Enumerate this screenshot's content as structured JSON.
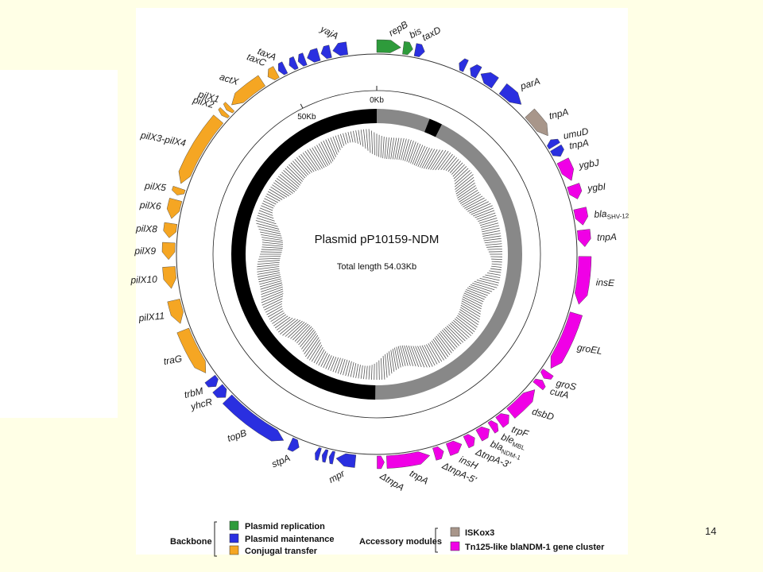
{
  "page_number": "14",
  "plasmid": {
    "title": "Plasmid pP10159-NDM",
    "total_length_label": "Total length 54.03Kb",
    "total_length_kb": 54.03
  },
  "scale_ticks": [
    {
      "label": "0Kb",
      "kb": 0
    },
    {
      "label": "50Kb",
      "kb": 50
    }
  ],
  "colors": {
    "replication": "#2E9B3B",
    "maintenance": "#2A2FE0",
    "conjugal": "#F5A623",
    "iskox3": "#A8968A",
    "tn125": "#F000E6",
    "backbone_ring": "#000000",
    "accessory_ring": "#888888"
  },
  "ring_segments": [
    {
      "start_kb": 0,
      "end_kb": 3.2,
      "type": "accessory"
    },
    {
      "start_kb": 3.2,
      "end_kb": 4.0,
      "type": "backbone"
    },
    {
      "start_kb": 4.0,
      "end_kb": 27.1,
      "type": "accessory"
    },
    {
      "start_kb": 27.1,
      "end_kb": 54.03,
      "type": "backbone"
    }
  ],
  "genes": [
    {
      "name": "repB",
      "start_kb": 0.0,
      "end_kb": 1.0,
      "strand": "+",
      "category": "replication"
    },
    {
      "name": "bis",
      "start_kb": 1.1,
      "end_kb": 1.5,
      "strand": "+",
      "category": "replication"
    },
    {
      "name": "taxD",
      "start_kb": 1.6,
      "end_kb": 2.0,
      "strand": "+",
      "category": "maintenance"
    },
    {
      "name": "",
      "start_kb": 3.5,
      "end_kb": 3.8,
      "strand": "-",
      "category": "maintenance"
    },
    {
      "name": "",
      "start_kb": 4.0,
      "end_kb": 4.4,
      "strand": "-",
      "category": "maintenance"
    },
    {
      "name": "",
      "start_kb": 4.5,
      "end_kb": 5.2,
      "strand": "-",
      "category": "maintenance"
    },
    {
      "name": "parA",
      "start_kb": 5.6,
      "end_kb": 6.6,
      "strand": "+",
      "category": "maintenance"
    },
    {
      "name": "tnpA",
      "start_kb": 7.1,
      "end_kb": 8.3,
      "strand": "+",
      "category": "iskox3"
    },
    {
      "name": "umuD",
      "start_kb": 8.5,
      "end_kb": 8.8,
      "strand": "-",
      "category": "maintenance"
    },
    {
      "name": "tnpA",
      "start_kb": 8.9,
      "end_kb": 9.3,
      "strand": "+",
      "category": "maintenance"
    },
    {
      "name": "ygbJ",
      "start_kb": 9.5,
      "end_kb": 10.4,
      "strand": "+",
      "category": "tn125"
    },
    {
      "name": "ygbI",
      "start_kb": 10.6,
      "end_kb": 11.2,
      "strand": "+",
      "category": "tn125"
    },
    {
      "name": "blaSHV-12",
      "start_kb": 11.6,
      "end_kb": 12.3,
      "strand": "+",
      "category": "tn125"
    },
    {
      "name": "tnpA",
      "start_kb": 12.5,
      "end_kb": 13.2,
      "strand": "+",
      "category": "tn125"
    },
    {
      "name": "insE",
      "start_kb": 13.6,
      "end_kb": 15.6,
      "strand": "+",
      "category": "tn125"
    },
    {
      "name": "groEL",
      "start_kb": 16.0,
      "end_kb": 18.5,
      "strand": "+",
      "category": "tn125"
    },
    {
      "name": "groS",
      "start_kb": 18.7,
      "end_kb": 19.0,
      "strand": "+",
      "category": "tn125"
    },
    {
      "name": "cutA",
      "start_kb": 19.1,
      "end_kb": 19.4,
      "strand": "-",
      "category": "tn125"
    },
    {
      "name": "dsbD",
      "start_kb": 19.6,
      "end_kb": 21.0,
      "strand": "-",
      "category": "tn125"
    },
    {
      "name": "trpF",
      "start_kb": 21.1,
      "end_kb": 21.6,
      "strand": "-",
      "category": "tn125"
    },
    {
      "name": "bleMBL",
      "start_kb": 21.7,
      "end_kb": 22.0,
      "strand": "-",
      "category": "tn125"
    },
    {
      "name": "blaNDM-1",
      "start_kb": 22.1,
      "end_kb": 22.6,
      "strand": "-",
      "category": "tn125"
    },
    {
      "name": "ΔtnpA-3'",
      "start_kb": 22.8,
      "end_kb": 23.2,
      "strand": "-",
      "category": "tn125"
    },
    {
      "name": "insH",
      "start_kb": 23.4,
      "end_kb": 24.0,
      "strand": "-",
      "category": "tn125"
    },
    {
      "name": "ΔtnpA-5'",
      "start_kb": 24.2,
      "end_kb": 24.6,
      "strand": "-",
      "category": "tn125"
    },
    {
      "name": "tnpA",
      "start_kb": 24.8,
      "end_kb": 26.6,
      "strand": "-",
      "category": "tn125"
    },
    {
      "name": "ΔtnpA",
      "start_kb": 26.7,
      "end_kb": 27.0,
      "strand": "-",
      "category": "tn125"
    },
    {
      "name": "mpr",
      "start_kb": 27.9,
      "end_kb": 28.7,
      "strand": "+",
      "category": "maintenance"
    },
    {
      "name": "",
      "start_kb": 28.8,
      "end_kb": 29.0,
      "strand": "+",
      "category": "maintenance"
    },
    {
      "name": "",
      "start_kb": 29.1,
      "end_kb": 29.3,
      "strand": "+",
      "category": "maintenance"
    },
    {
      "name": "",
      "start_kb": 29.4,
      "end_kb": 29.6,
      "strand": "+",
      "category": "maintenance"
    },
    {
      "name": "stpA",
      "start_kb": 30.3,
      "end_kb": 30.7,
      "strand": "-",
      "category": "maintenance"
    },
    {
      "name": "topB",
      "start_kb": 31.0,
      "end_kb": 33.9,
      "strand": "-",
      "category": "maintenance"
    },
    {
      "name": "yhcR",
      "start_kb": 34.0,
      "end_kb": 34.5,
      "strand": "-",
      "category": "maintenance"
    },
    {
      "name": "trbM",
      "start_kb": 34.6,
      "end_kb": 35.0,
      "strand": "-",
      "category": "maintenance"
    },
    {
      "name": "traG",
      "start_kb": 35.3,
      "end_kb": 37.3,
      "strand": "-",
      "category": "conjugal"
    },
    {
      "name": "pilX11",
      "start_kb": 37.6,
      "end_kb": 38.6,
      "strand": "-",
      "category": "conjugal"
    },
    {
      "name": "pilX10",
      "start_kb": 39.1,
      "end_kb": 40.0,
      "strand": "-",
      "category": "conjugal"
    },
    {
      "name": "pilX9",
      "start_kb": 40.3,
      "end_kb": 41.0,
      "strand": "-",
      "category": "conjugal"
    },
    {
      "name": "pilX8",
      "start_kb": 41.2,
      "end_kb": 41.8,
      "strand": "-",
      "category": "conjugal"
    },
    {
      "name": "pilX6",
      "start_kb": 42.0,
      "end_kb": 42.8,
      "strand": "-",
      "category": "conjugal"
    },
    {
      "name": "pilX5",
      "start_kb": 43.0,
      "end_kb": 43.3,
      "strand": "-",
      "category": "conjugal"
    },
    {
      "name": "pilX3-pilX4",
      "start_kb": 43.5,
      "end_kb": 46.6,
      "strand": "-",
      "category": "conjugal"
    },
    {
      "name": "pilX2",
      "start_kb": 46.8,
      "end_kb": 47.0,
      "strand": "-",
      "category": "conjugal"
    },
    {
      "name": "pilX1",
      "start_kb": 47.1,
      "end_kb": 47.3,
      "strand": "-",
      "category": "conjugal"
    },
    {
      "name": "actX",
      "start_kb": 47.4,
      "end_kb": 49.0,
      "strand": "-",
      "category": "conjugal"
    },
    {
      "name": "taxC",
      "start_kb": 49.3,
      "end_kb": 49.7,
      "strand": "-",
      "category": "conjugal"
    },
    {
      "name": "taxA",
      "start_kb": 49.8,
      "end_kb": 50.1,
      "strand": "-",
      "category": "maintenance"
    },
    {
      "name": "",
      "start_kb": 50.3,
      "end_kb": 50.6,
      "strand": "-",
      "category": "maintenance"
    },
    {
      "name": "",
      "start_kb": 50.7,
      "end_kb": 51.0,
      "strand": "-",
      "category": "maintenance"
    },
    {
      "name": "",
      "start_kb": 51.1,
      "end_kb": 51.6,
      "strand": "-",
      "category": "maintenance"
    },
    {
      "name": "",
      "start_kb": 51.7,
      "end_kb": 52.1,
      "strand": "-",
      "category": "maintenance"
    },
    {
      "name": "yajA",
      "start_kb": 52.2,
      "end_kb": 52.8,
      "strand": "-",
      "category": "maintenance"
    }
  ],
  "legend": {
    "backbone_title": "Backbone",
    "accessory_title": "Accessory modules",
    "backbone_items": [
      {
        "label": "Plasmid replication",
        "color_key": "replication"
      },
      {
        "label": "Plasmid maintenance",
        "color_key": "maintenance"
      },
      {
        "label": "Conjugal transfer",
        "color_key": "conjugal"
      }
    ],
    "accessory_items": [
      {
        "label": "ISKox3",
        "color_key": "iskox3"
      },
      {
        "label": "Tn125-like blaNDM-1 gene cluster",
        "color_key": "tn125"
      }
    ]
  }
}
